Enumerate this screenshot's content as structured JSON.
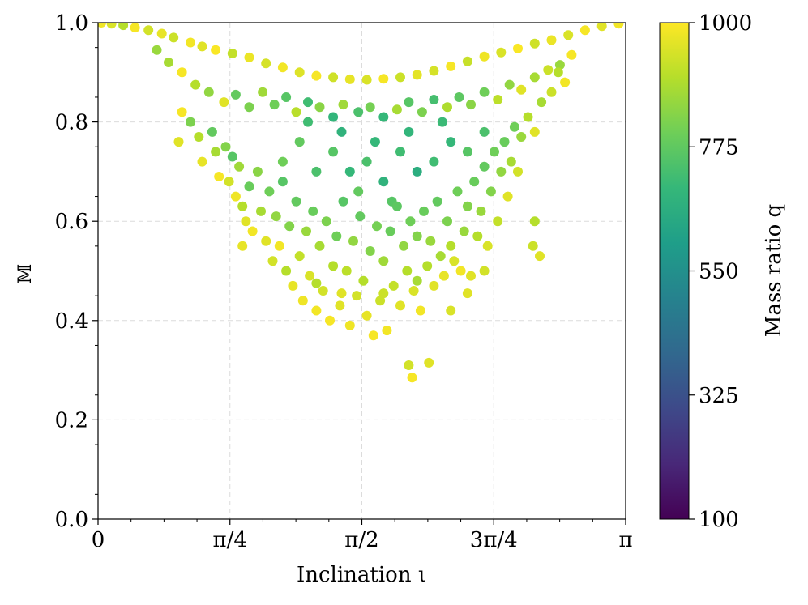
{
  "chart_data": {
    "type": "scatter",
    "title": "",
    "xlabel": "Inclination ι",
    "ylabel": "𝕄",
    "xlim": [
      0,
      3.14159265
    ],
    "ylim": [
      0.0,
      1.0
    ],
    "x_ticks": [
      {
        "value": 0,
        "label": "0"
      },
      {
        "value": 0.78539816,
        "label": "π/4"
      },
      {
        "value": 1.57079633,
        "label": "π/2"
      },
      {
        "value": 2.35619449,
        "label": "3π/4"
      },
      {
        "value": 3.14159265,
        "label": "π"
      }
    ],
    "y_ticks": [
      {
        "value": 0.0,
        "label": "0.0"
      },
      {
        "value": 0.2,
        "label": "0.2"
      },
      {
        "value": 0.4,
        "label": "0.4"
      },
      {
        "value": 0.6,
        "label": "0.6"
      },
      {
        "value": 0.8,
        "label": "0.8"
      },
      {
        "value": 1.0,
        "label": "1.0"
      }
    ],
    "grid": true,
    "colorbar": {
      "label": "Mass ratio q",
      "range": [
        100,
        1000
      ],
      "ticks": [
        {
          "value": 100,
          "label": "100"
        },
        {
          "value": 325,
          "label": "325"
        },
        {
          "value": 550,
          "label": "550"
        },
        {
          "value": 775,
          "label": "775"
        },
        {
          "value": 1000,
          "label": "1000"
        }
      ],
      "colormap": "viridis",
      "colormap_stops": [
        "#440154",
        "#482878",
        "#3e4989",
        "#31688e",
        "#26828e",
        "#1f9e89",
        "#35b779",
        "#6ece58",
        "#b5de2b",
        "#fde725"
      ]
    },
    "series_description": "Scatter of match 𝕄 vs inclination ι, colored by mass ratio q. Upper envelope ≈ 1 − 0.135·sin²ι (minimum ≈ 0.865 at π/2); points spread downward toward ≈ 0.28 near ι ≈ π/2.",
    "points": [
      [
        0.02,
        1.0,
        980
      ],
      [
        0.08,
        0.998,
        950
      ],
      [
        0.15,
        0.995,
        900
      ],
      [
        0.22,
        0.99,
        990
      ],
      [
        0.3,
        0.985,
        940
      ],
      [
        0.38,
        0.978,
        970
      ],
      [
        0.45,
        0.97,
        930
      ],
      [
        0.55,
        0.96,
        985
      ],
      [
        0.62,
        0.952,
        960
      ],
      [
        0.7,
        0.945,
        995
      ],
      [
        0.8,
        0.938,
        920
      ],
      [
        0.9,
        0.93,
        975
      ],
      [
        1.0,
        0.918,
        945
      ],
      [
        1.1,
        0.91,
        985
      ],
      [
        1.2,
        0.9,
        955
      ],
      [
        1.3,
        0.893,
        990
      ],
      [
        1.4,
        0.89,
        935
      ],
      [
        1.5,
        0.886,
        970
      ],
      [
        1.6,
        0.885,
        950
      ],
      [
        1.7,
        0.887,
        990
      ],
      [
        1.8,
        0.89,
        930
      ],
      [
        1.9,
        0.895,
        965
      ],
      [
        2.0,
        0.903,
        945
      ],
      [
        2.1,
        0.912,
        990
      ],
      [
        2.2,
        0.922,
        925
      ],
      [
        2.3,
        0.932,
        980
      ],
      [
        2.4,
        0.94,
        950
      ],
      [
        2.5,
        0.948,
        995
      ],
      [
        2.6,
        0.958,
        935
      ],
      [
        2.7,
        0.965,
        975
      ],
      [
        2.8,
        0.975,
        950
      ],
      [
        2.9,
        0.985,
        990
      ],
      [
        3.0,
        0.993,
        960
      ],
      [
        3.1,
        0.998,
        985
      ],
      [
        0.35,
        0.945,
        860
      ],
      [
        0.42,
        0.92,
        880
      ],
      [
        0.5,
        0.9,
        990
      ],
      [
        0.58,
        0.875,
        900
      ],
      [
        0.66,
        0.86,
        850
      ],
      [
        0.75,
        0.84,
        960
      ],
      [
        0.82,
        0.855,
        780
      ],
      [
        0.9,
        0.83,
        820
      ],
      [
        0.98,
        0.86,
        870
      ],
      [
        1.05,
        0.835,
        800
      ],
      [
        1.12,
        0.85,
        760
      ],
      [
        1.18,
        0.82,
        905
      ],
      [
        1.25,
        0.84,
        720
      ],
      [
        1.32,
        0.83,
        840
      ],
      [
        1.4,
        0.81,
        690
      ],
      [
        1.46,
        0.835,
        870
      ],
      [
        1.55,
        0.82,
        740
      ],
      [
        1.62,
        0.83,
        810
      ],
      [
        1.7,
        0.81,
        700
      ],
      [
        1.78,
        0.825,
        880
      ],
      [
        1.85,
        0.84,
        760
      ],
      [
        1.93,
        0.82,
        820
      ],
      [
        2.0,
        0.845,
        730
      ],
      [
        2.08,
        0.83,
        890
      ],
      [
        2.15,
        0.85,
        770
      ],
      [
        2.22,
        0.835,
        840
      ],
      [
        2.3,
        0.86,
        800
      ],
      [
        2.38,
        0.845,
        910
      ],
      [
        2.45,
        0.875,
        850
      ],
      [
        2.52,
        0.865,
        960
      ],
      [
        2.6,
        0.89,
        880
      ],
      [
        2.68,
        0.905,
        930
      ],
      [
        2.75,
        0.915,
        860
      ],
      [
        2.82,
        0.935,
        990
      ],
      [
        0.5,
        0.82,
        990
      ],
      [
        0.48,
        0.76,
        960
      ],
      [
        0.55,
        0.8,
        820
      ],
      [
        0.6,
        0.77,
        900
      ],
      [
        0.62,
        0.72,
        970
      ],
      [
        0.68,
        0.78,
        780
      ],
      [
        0.7,
        0.74,
        880
      ],
      [
        0.72,
        0.69,
        990
      ],
      [
        0.76,
        0.75,
        830
      ],
      [
        0.78,
        0.68,
        940
      ],
      [
        0.8,
        0.73,
        760
      ],
      [
        0.82,
        0.65,
        980
      ],
      [
        0.84,
        0.71,
        870
      ],
      [
        0.86,
        0.63,
        900
      ],
      [
        0.88,
        0.6,
        960
      ],
      [
        0.9,
        0.67,
        790
      ],
      [
        0.92,
        0.58,
        985
      ],
      [
        0.95,
        0.7,
        840
      ],
      [
        0.97,
        0.62,
        880
      ],
      [
        1.0,
        0.56,
        960
      ],
      [
        1.02,
        0.66,
        800
      ],
      [
        1.04,
        0.52,
        940
      ],
      [
        1.06,
        0.61,
        850
      ],
      [
        1.08,
        0.55,
        985
      ],
      [
        1.1,
        0.68,
        760
      ],
      [
        1.12,
        0.5,
        900
      ],
      [
        1.14,
        0.59,
        830
      ],
      [
        1.16,
        0.47,
        970
      ],
      [
        1.18,
        0.64,
        780
      ],
      [
        1.2,
        0.53,
        920
      ],
      [
        1.22,
        0.44,
        980
      ],
      [
        1.24,
        0.58,
        860
      ],
      [
        1.26,
        0.49,
        950
      ],
      [
        1.28,
        0.62,
        790
      ],
      [
        1.3,
        0.42,
        985
      ],
      [
        1.32,
        0.55,
        880
      ],
      [
        1.34,
        0.46,
        940
      ],
      [
        1.36,
        0.6,
        820
      ],
      [
        1.38,
        0.4,
        990
      ],
      [
        1.4,
        0.51,
        900
      ],
      [
        1.42,
        0.57,
        800
      ],
      [
        1.44,
        0.43,
        960
      ],
      [
        1.46,
        0.64,
        760
      ],
      [
        1.48,
        0.5,
        910
      ],
      [
        1.5,
        0.39,
        980
      ],
      [
        1.52,
        0.56,
        850
      ],
      [
        1.54,
        0.45,
        940
      ],
      [
        1.56,
        0.61,
        780
      ],
      [
        1.58,
        0.48,
        900
      ],
      [
        1.6,
        0.41,
        970
      ],
      [
        1.62,
        0.54,
        830
      ],
      [
        1.64,
        0.37,
        990
      ],
      [
        1.66,
        0.59,
        810
      ],
      [
        1.68,
        0.44,
        930
      ],
      [
        1.7,
        0.52,
        870
      ],
      [
        1.72,
        0.38,
        985
      ],
      [
        1.74,
        0.58,
        790
      ],
      [
        1.76,
        0.47,
        920
      ],
      [
        1.78,
        0.63,
        770
      ],
      [
        1.8,
        0.43,
        960
      ],
      [
        1.82,
        0.55,
        850
      ],
      [
        1.84,
        0.5,
        900
      ],
      [
        1.86,
        0.6,
        800
      ],
      [
        1.88,
        0.46,
        950
      ],
      [
        1.9,
        0.57,
        830
      ],
      [
        1.92,
        0.42,
        985
      ],
      [
        1.94,
        0.62,
        790
      ],
      [
        1.96,
        0.51,
        900
      ],
      [
        1.98,
        0.56,
        860
      ],
      [
        2.0,
        0.47,
        960
      ],
      [
        2.02,
        0.64,
        780
      ],
      [
        2.04,
        0.53,
        880
      ],
      [
        2.06,
        0.49,
        970
      ],
      [
        2.08,
        0.6,
        820
      ],
      [
        2.1,
        0.55,
        900
      ],
      [
        2.12,
        0.52,
        950
      ],
      [
        2.14,
        0.66,
        800
      ],
      [
        2.16,
        0.5,
        985
      ],
      [
        2.18,
        0.58,
        860
      ],
      [
        2.2,
        0.63,
        830
      ],
      [
        2.22,
        0.49,
        960
      ],
      [
        2.24,
        0.68,
        790
      ],
      [
        2.26,
        0.57,
        900
      ],
      [
        2.28,
        0.62,
        860
      ],
      [
        2.3,
        0.71,
        780
      ],
      [
        2.32,
        0.55,
        950
      ],
      [
        2.34,
        0.66,
        830
      ],
      [
        2.36,
        0.74,
        800
      ],
      [
        2.38,
        0.6,
        920
      ],
      [
        2.4,
        0.7,
        850
      ],
      [
        2.42,
        0.76,
        790
      ],
      [
        2.44,
        0.65,
        960
      ],
      [
        2.46,
        0.72,
        880
      ],
      [
        2.48,
        0.79,
        800
      ],
      [
        2.5,
        0.7,
        940
      ],
      [
        2.52,
        0.77,
        860
      ],
      [
        2.56,
        0.81,
        900
      ],
      [
        2.6,
        0.78,
        960
      ],
      [
        2.64,
        0.84,
        880
      ],
      [
        2.7,
        0.86,
        930
      ],
      [
        2.74,
        0.9,
        900
      ],
      [
        2.78,
        0.88,
        985
      ],
      [
        1.85,
        0.31,
        940
      ],
      [
        1.87,
        0.285,
        990
      ],
      [
        1.97,
        0.315,
        960
      ],
      [
        1.7,
        0.455,
        930
      ],
      [
        1.9,
        0.48,
        880
      ],
      [
        2.2,
        0.455,
        960
      ],
      [
        2.1,
        0.42,
        950
      ],
      [
        1.45,
        0.455,
        960
      ],
      [
        1.3,
        0.475,
        900
      ],
      [
        2.3,
        0.5,
        940
      ],
      [
        0.86,
        0.55,
        970
      ],
      [
        2.59,
        0.55,
        930
      ],
      [
        2.63,
        0.53,
        960
      ],
      [
        2.6,
        0.6,
        900
      ],
      [
        1.5,
        0.7,
        700
      ],
      [
        1.6,
        0.72,
        740
      ],
      [
        1.7,
        0.68,
        680
      ],
      [
        1.8,
        0.74,
        720
      ],
      [
        1.9,
        0.7,
        660
      ],
      [
        1.55,
        0.66,
        780
      ],
      [
        1.75,
        0.64,
        760
      ],
      [
        1.65,
        0.76,
        700
      ],
      [
        1.4,
        0.74,
        760
      ],
      [
        1.3,
        0.7,
        740
      ],
      [
        2.0,
        0.72,
        720
      ],
      [
        2.1,
        0.76,
        700
      ],
      [
        1.2,
        0.76,
        780
      ],
      [
        1.1,
        0.72,
        800
      ],
      [
        2.2,
        0.74,
        760
      ],
      [
        2.3,
        0.78,
        740
      ],
      [
        1.45,
        0.78,
        680
      ],
      [
        1.85,
        0.78,
        690
      ],
      [
        1.25,
        0.8,
        720
      ],
      [
        2.05,
        0.8,
        710
      ]
    ]
  }
}
